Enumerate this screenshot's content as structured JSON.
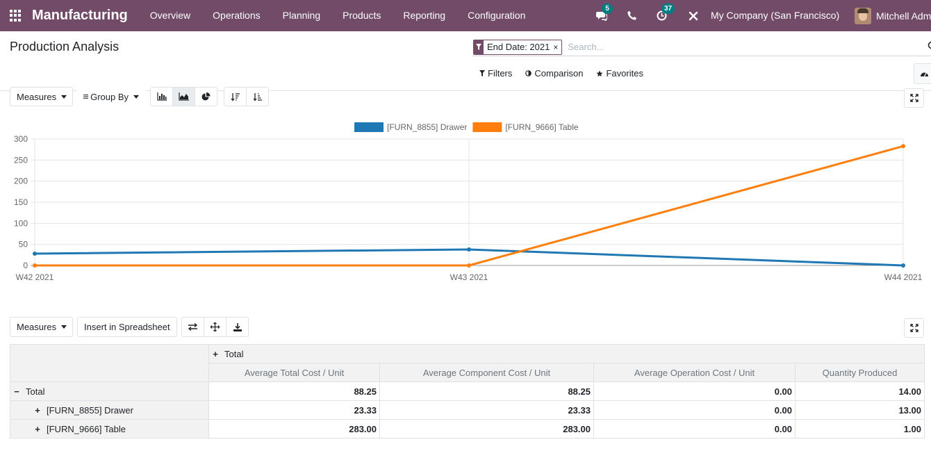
{
  "navbar": {
    "app_name": "Manufacturing",
    "menu": [
      "Overview",
      "Operations",
      "Planning",
      "Products",
      "Reporting",
      "Configuration"
    ],
    "messages_count": "5",
    "activities_count": "37",
    "company": "My Company (San Francisco)",
    "user": "Mitchell Admi",
    "color": "#714b67"
  },
  "control_panel": {
    "title": "Production Analysis",
    "facet_label": "End Date: 2021",
    "facet_remove": "×",
    "search_placeholder": "Search...",
    "filters_label": "Filters",
    "comparison_label": "Comparison",
    "favorites_label": "Favorites"
  },
  "graph_toolbar": {
    "measures_label": "Measures",
    "group_by_label": "Group By",
    "active_view": "line-chart"
  },
  "chart_data": {
    "type": "line",
    "x": [
      "W42 2021",
      "W43 2021",
      "W44 2021"
    ],
    "ylim": [
      0,
      300
    ],
    "yticks": [
      0,
      50,
      100,
      150,
      200,
      250,
      300
    ],
    "grid": true,
    "legend_position": "top-center",
    "series": [
      {
        "name": "[FURN_8855] Drawer",
        "values": [
          28,
          38,
          0
        ],
        "color": "#1f77b4"
      },
      {
        "name": "[FURN_9666] Table",
        "values": [
          0,
          0,
          283
        ],
        "color": "#ff7f0e"
      }
    ]
  },
  "pivot_toolbar": {
    "measures_label": "Measures",
    "insert_label": "Insert in Spreadsheet"
  },
  "pivot": {
    "col_group": "Total",
    "measures": [
      "Average Total Cost / Unit",
      "Average Component Cost / Unit",
      "Average Operation Cost / Unit",
      "Quantity Produced"
    ],
    "rows": [
      {
        "label": "Total",
        "values": [
          "88.25",
          "88.25",
          "0.00",
          "14.00"
        ]
      },
      {
        "label": "[FURN_8855] Drawer",
        "values": [
          "23.33",
          "23.33",
          "0.00",
          "13.00"
        ]
      },
      {
        "label": "[FURN_9666] Table",
        "values": [
          "283.00",
          "283.00",
          "0.00",
          "1.00"
        ]
      }
    ]
  }
}
